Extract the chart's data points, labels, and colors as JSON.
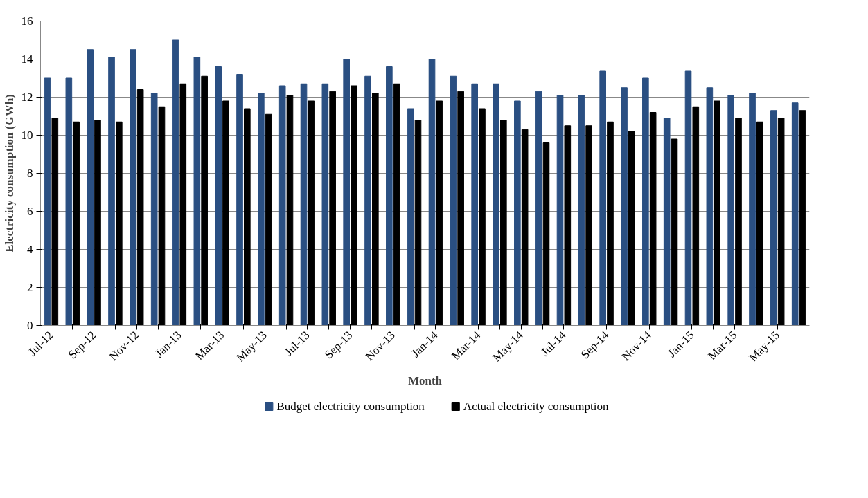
{
  "chart_data": {
    "type": "bar",
    "xlabel": "Month",
    "ylabel": "Electricity consumption (GWh)",
    "categories": [
      "Jul-12",
      null,
      "Sep-12",
      null,
      "Nov-12",
      null,
      "Jan-13",
      null,
      "Mar-13",
      null,
      "May-13",
      null,
      "Jul-13",
      null,
      "Sep-13",
      null,
      "Nov-13",
      null,
      "Jan-14",
      null,
      "Mar-14",
      null,
      "May-14",
      null,
      "Jul-14",
      null,
      "Sep-14",
      null,
      "Nov-14",
      null,
      "Jan-15",
      null,
      "Mar-15",
      null,
      "May-15",
      null
    ],
    "series": [
      {
        "name": "Budget electricity consumption",
        "color": "#2a4f82",
        "values": [
          13.0,
          13.0,
          14.5,
          14.1,
          14.5,
          12.2,
          15.0,
          14.1,
          13.6,
          13.2,
          12.2,
          12.6,
          12.7,
          12.7,
          14.0,
          13.1,
          13.6,
          11.4,
          14.0,
          13.1,
          12.7,
          12.7,
          11.8,
          12.3,
          12.1,
          12.1,
          13.4,
          12.5,
          13.0,
          10.9,
          13.4,
          12.5,
          12.1,
          12.2,
          11.3,
          11.7
        ]
      },
      {
        "name": "Actual electricity consumption",
        "color": "#000000",
        "values": [
          10.9,
          10.7,
          10.8,
          10.7,
          12.4,
          11.5,
          12.7,
          13.1,
          11.8,
          11.4,
          11.1,
          12.1,
          11.8,
          12.3,
          12.6,
          12.2,
          12.7,
          10.8,
          11.8,
          12.3,
          11.4,
          10.8,
          10.3,
          9.6,
          10.5,
          10.5,
          10.7,
          10.2,
          11.2,
          9.8,
          11.5,
          11.8,
          10.9,
          10.7,
          10.9,
          11.3
        ]
      }
    ],
    "ylim": [
      0,
      16
    ],
    "yticks": [
      0,
      2,
      4,
      6,
      8,
      10,
      12,
      14,
      16
    ],
    "grid": "y",
    "legend": "bottom"
  }
}
